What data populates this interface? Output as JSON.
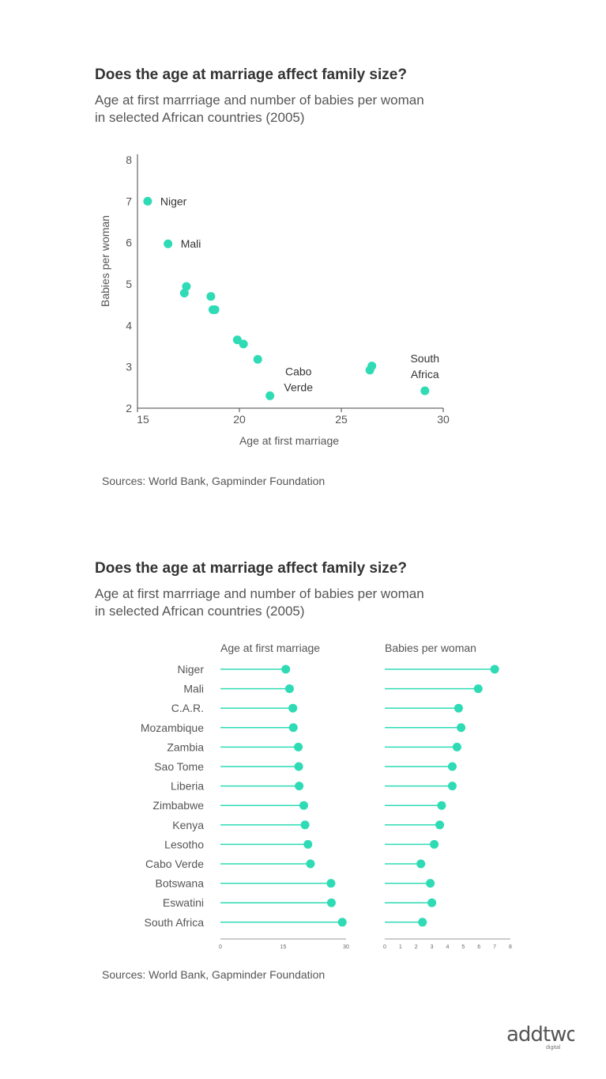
{
  "chart1": {
    "title": "Does the age at marriage affect family size?",
    "subtitle_line1": "Age at first marrriage and number of babies per woman",
    "subtitle_line2": "in selected African countries (2005)",
    "source": "Sources: World Bank, Gapminder Foundation"
  },
  "chart2": {
    "title": "Does the age at marriage affect family size?",
    "subtitle_line1": "Age at first marrriage and number of babies per woman",
    "subtitle_line2": "in selected African countries (2005)",
    "source": "Sources: World Bank, Gapminder Foundation"
  },
  "logo": {
    "text": "addtwo",
    "subtext": "digital"
  },
  "colors": {
    "accent": "#2EDBB5",
    "axis": "#444444",
    "text": "#333333"
  },
  "chart_data": [
    {
      "type": "scatter",
      "title": "Does the age at marriage affect family size?",
      "xlabel": "Age at first marriage",
      "ylabel": "Babies per woman",
      "xlim": [
        15,
        30
      ],
      "ylim": [
        2,
        8
      ],
      "xticks": [
        15,
        20,
        25,
        30
      ],
      "yticks": [
        2,
        3,
        4,
        5,
        6,
        7,
        8
      ],
      "points": [
        {
          "country": "Niger",
          "x": 15.5,
          "y": 7.0
        },
        {
          "country": "Mali",
          "x": 16.5,
          "y": 5.97
        },
        {
          "country": "C.A.R.",
          "x": 17.3,
          "y": 4.78
        },
        {
          "country": "Mozambique",
          "x": 17.4,
          "y": 4.94
        },
        {
          "country": "Zambia",
          "x": 18.6,
          "y": 4.7
        },
        {
          "country": "Sao Tome",
          "x": 18.7,
          "y": 4.38
        },
        {
          "country": "Liberia",
          "x": 18.8,
          "y": 4.38
        },
        {
          "country": "Zimbabwe",
          "x": 19.9,
          "y": 3.65
        },
        {
          "country": "Kenya",
          "x": 20.2,
          "y": 3.55
        },
        {
          "country": "Lesotho",
          "x": 20.9,
          "y": 3.18
        },
        {
          "country": "Cabo Verde",
          "x": 21.5,
          "y": 2.3
        },
        {
          "country": "Botswana",
          "x": 26.4,
          "y": 2.92
        },
        {
          "country": "Eswatini",
          "x": 26.5,
          "y": 3.02
        },
        {
          "country": "South Africa",
          "x": 29.1,
          "y": 2.42
        }
      ],
      "annotations": [
        {
          "country": "Niger",
          "lines": [
            "Niger"
          ]
        },
        {
          "country": "Mali",
          "lines": [
            "Mali"
          ]
        },
        {
          "country": "Cabo Verde",
          "lines": [
            "Cabo",
            "Verde"
          ]
        },
        {
          "country": "South Africa",
          "lines": [
            "South",
            "Africa"
          ]
        }
      ]
    },
    {
      "type": "dot-plot",
      "panels": [
        {
          "title": "Age at first marriage",
          "xlim": [
            0,
            30
          ],
          "ticks": [
            0,
            15,
            30
          ]
        },
        {
          "title": "Babies per woman",
          "xlim": [
            0,
            8
          ],
          "ticks": [
            0,
            1,
            2,
            3,
            4,
            5,
            6,
            7,
            8
          ]
        }
      ],
      "rows": [
        {
          "country": "Niger",
          "age": 15.6,
          "babies": 7.0
        },
        {
          "country": "Mali",
          "age": 16.5,
          "babies": 5.95
        },
        {
          "country": "C.A.R.",
          "age": 17.3,
          "babies": 4.7
        },
        {
          "country": "Mozambique",
          "age": 17.4,
          "babies": 4.86
        },
        {
          "country": "Zambia",
          "age": 18.6,
          "babies": 4.6
        },
        {
          "country": "Sao Tome",
          "age": 18.7,
          "babies": 4.3
        },
        {
          "country": "Liberia",
          "age": 18.8,
          "babies": 4.3
        },
        {
          "country": "Zimbabwe",
          "age": 19.9,
          "babies": 3.62
        },
        {
          "country": "Kenya",
          "age": 20.2,
          "babies": 3.5
        },
        {
          "country": "Lesotho",
          "age": 20.9,
          "babies": 3.15
        },
        {
          "country": "Cabo Verde",
          "age": 21.5,
          "babies": 2.3
        },
        {
          "country": "Botswana",
          "age": 26.4,
          "babies": 2.9
        },
        {
          "country": "Eswatini",
          "age": 26.5,
          "babies": 3.0
        },
        {
          "country": "South Africa",
          "age": 29.1,
          "babies": 2.4
        }
      ]
    }
  ]
}
